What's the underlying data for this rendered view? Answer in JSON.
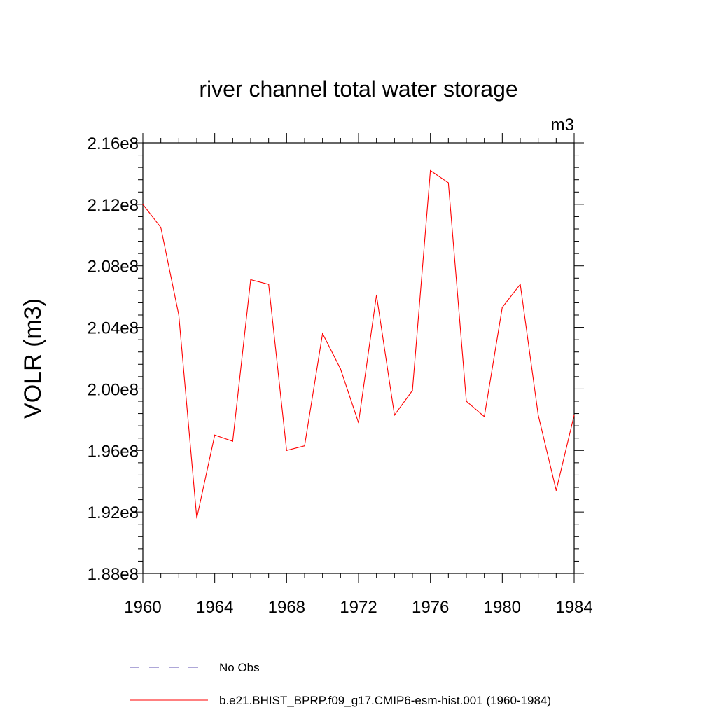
{
  "chart_data": {
    "type": "line",
    "title": "river channel total water storage",
    "units_label": "m3",
    "ylabel": "VOLR  (m3)",
    "xlabel": "",
    "xlim": [
      1960,
      1984
    ],
    "ylim": [
      188000000,
      216000000
    ],
    "x_ticks": [
      1960,
      1964,
      1968,
      1972,
      1976,
      1980,
      1984
    ],
    "x_tick_labels": [
      "1960",
      "1964",
      "1968",
      "1972",
      "1976",
      "1980",
      "1984"
    ],
    "y_ticks": [
      188000000,
      192000000,
      196000000,
      200000000,
      204000000,
      208000000,
      212000000,
      216000000
    ],
    "y_tick_labels": [
      "1.88e8",
      "1.92e8",
      "1.96e8",
      "2.00e8",
      "2.04e8",
      "2.08e8",
      "2.12e8",
      "2.16e8"
    ],
    "grid": false,
    "legend_position": "bottom",
    "series": [
      {
        "name": "No Obs",
        "color": "#5c4fb0",
        "dash": "dashed",
        "x": [],
        "values": []
      },
      {
        "name": "b.e21.BHIST_BPRP.f09_g17.CMIP6-esm-hist.001 (1960-1984)",
        "color": "#ff0000",
        "dash": "solid",
        "x": [
          1960,
          1961,
          1962,
          1963,
          1964,
          1965,
          1966,
          1967,
          1968,
          1969,
          1970,
          1971,
          1972,
          1973,
          1974,
          1975,
          1976,
          1977,
          1978,
          1979,
          1980,
          1981,
          1982,
          1983,
          1984
        ],
        "values": [
          212000000,
          210500000,
          204800000,
          191600000,
          197000000,
          196600000,
          207100000,
          206800000,
          196000000,
          196300000,
          203600000,
          201300000,
          197800000,
          206100000,
          198300000,
          199900000,
          214200000,
          213400000,
          199200000,
          198200000,
          205300000,
          206800000,
          198300000,
          193400000,
          198300000
        ]
      }
    ]
  }
}
